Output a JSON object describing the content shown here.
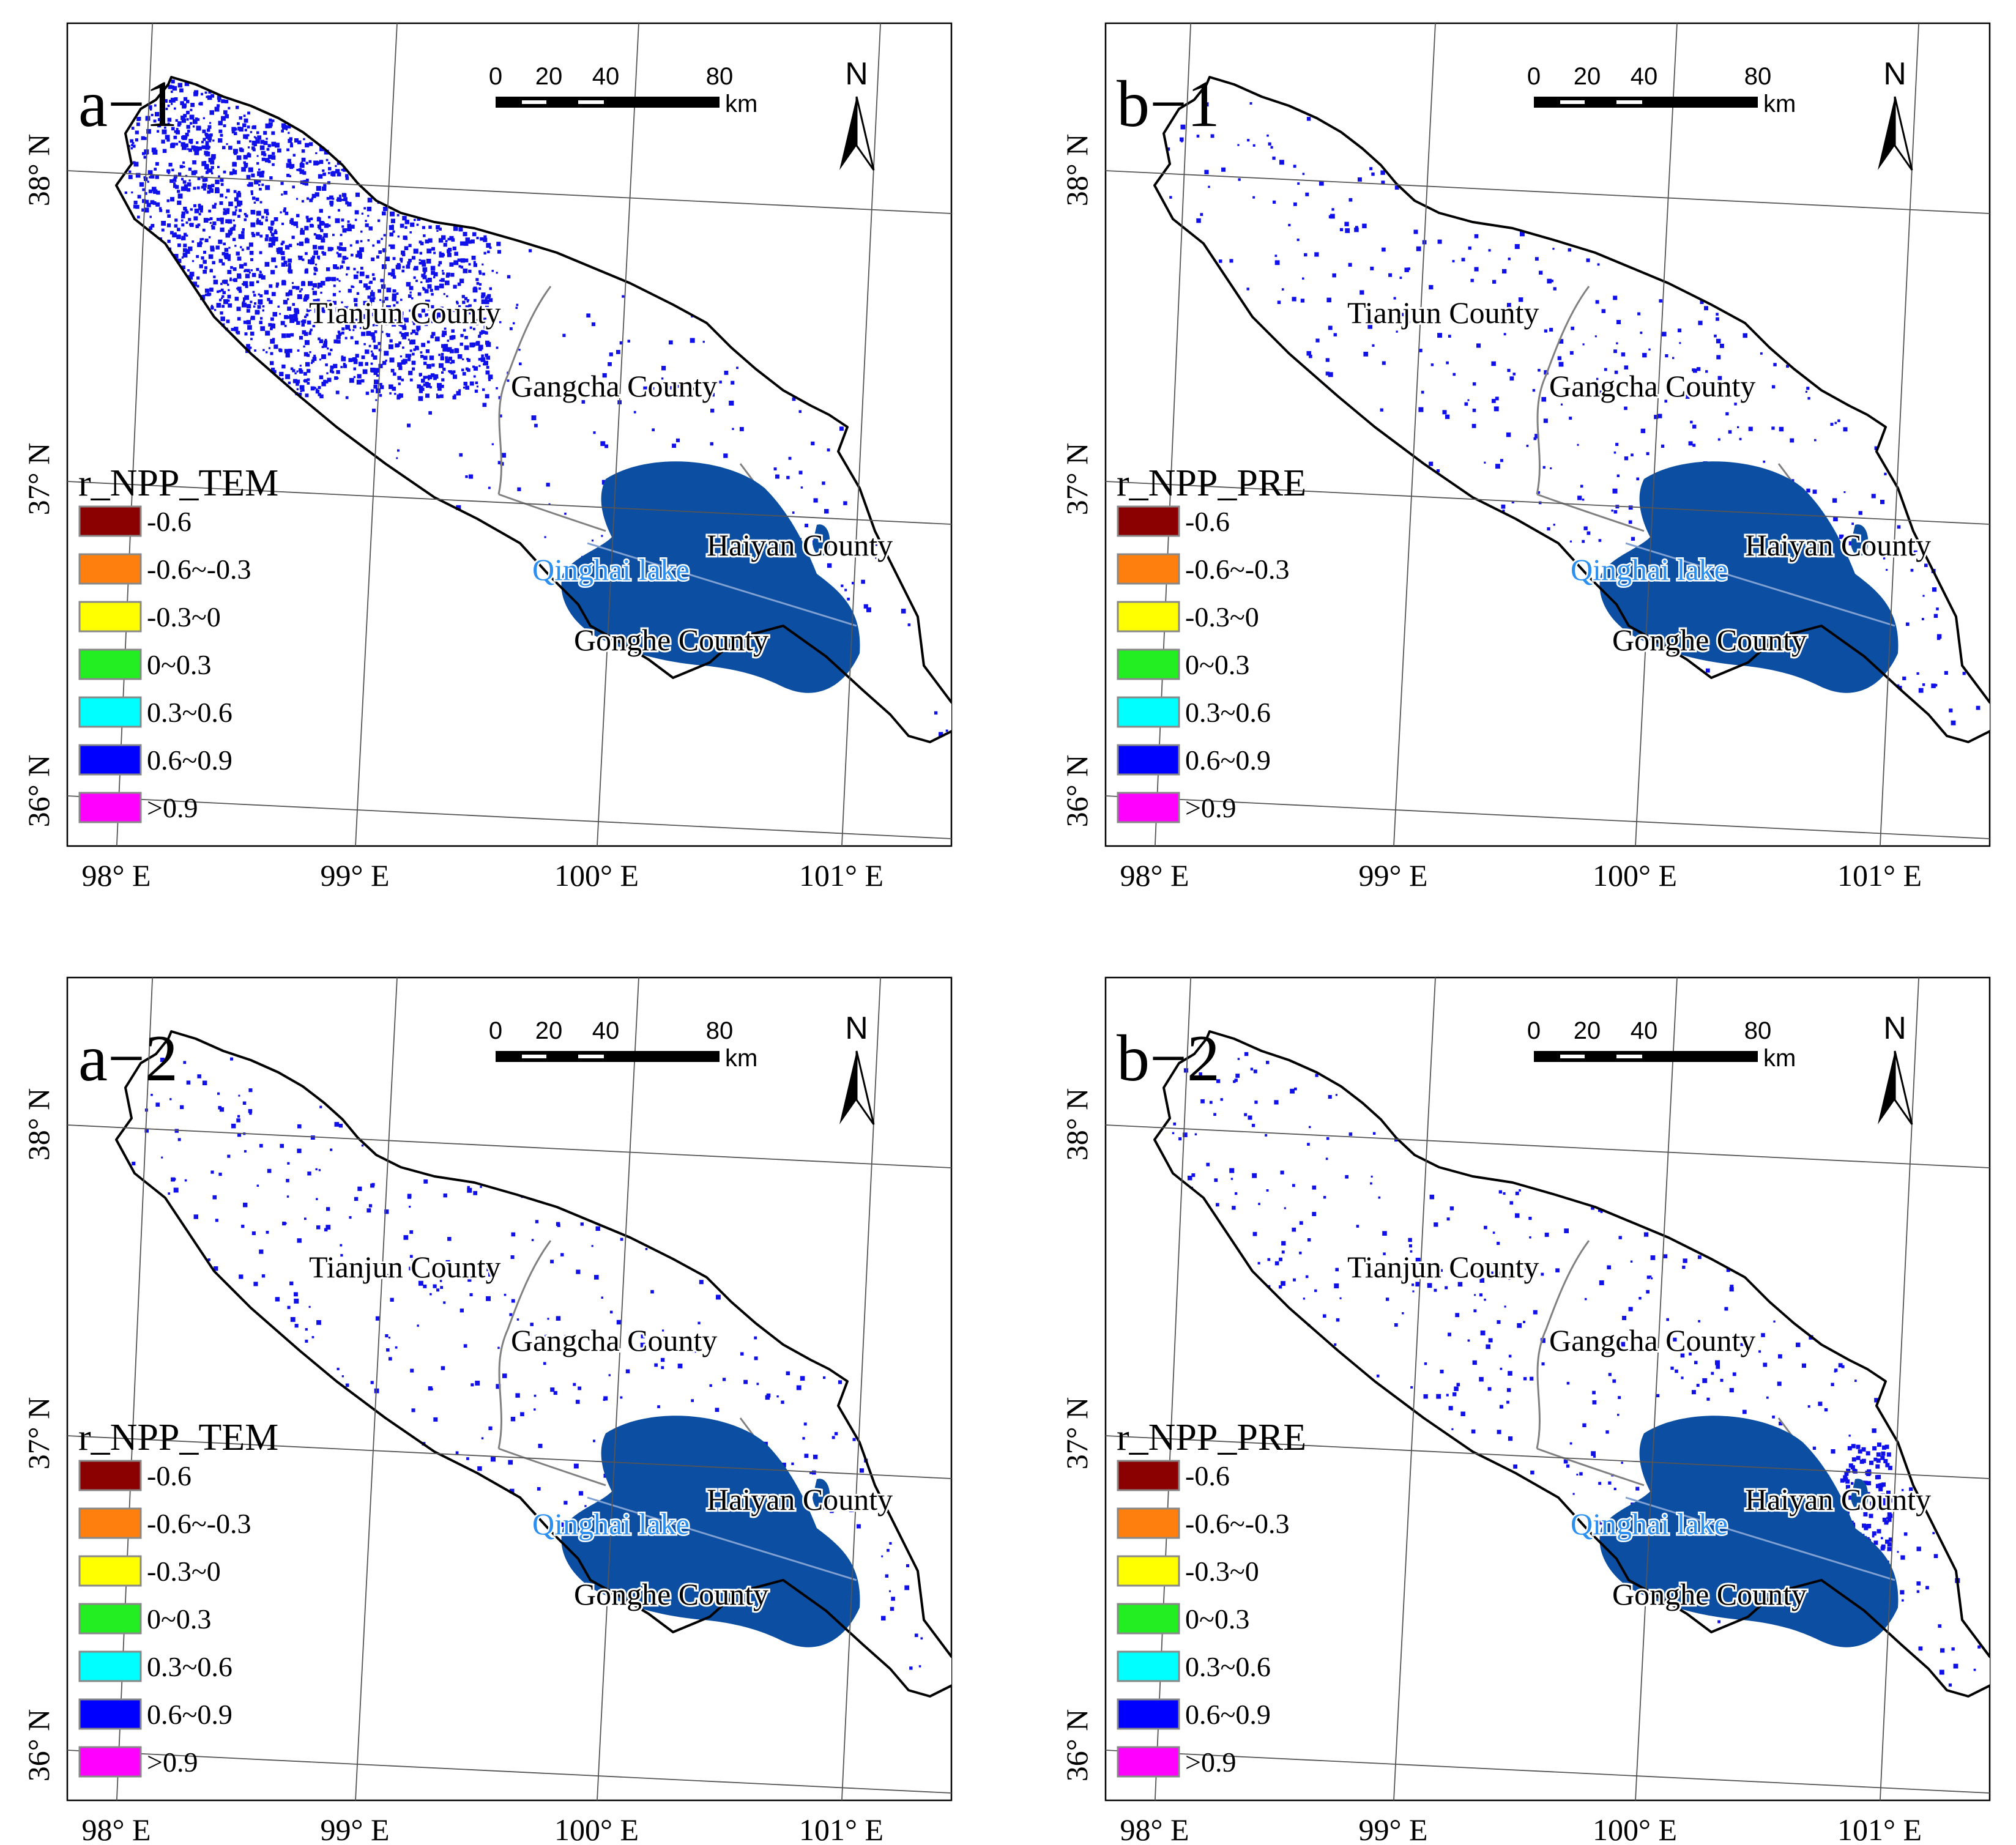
{
  "colors": {
    "boundary": "#000000",
    "lake": "#0b4ea2",
    "lake_label": "#2a8ff0",
    "pixel": "#1010e8",
    "divider": "#808080",
    "grid": "#555555"
  },
  "latitude_labels": [
    "38° N",
    "37° N",
    "36° N"
  ],
  "longitude_labels": [
    "98° E",
    "99° E",
    "100° E",
    "101° E"
  ],
  "scalebar": {
    "ticks": [
      "0",
      "20",
      "40",
      "80"
    ],
    "unit": "km"
  },
  "north_arrow": {
    "label": "N",
    "icon": "north-arrow-icon"
  },
  "places": {
    "tianjun": "Tianjun County",
    "gangcha": "Gangcha County",
    "haiyan": "Haiyan County",
    "gonghe": "Gonghe County",
    "lake": "Qinghai lake"
  },
  "legend_classes": [
    {
      "label": "-0.6",
      "color": "#8b0000"
    },
    {
      "label": "-0.6~-0.3",
      "color": "#ff7f0e"
    },
    {
      "label": "-0.3~0",
      "color": "#ffff00"
    },
    {
      "label": "0~0.3",
      "color": "#22ee22"
    },
    {
      "label": "0.3~0.6",
      "color": "#00ffff"
    },
    {
      "label": "0.6~0.9",
      "color": "#0000ff"
    },
    {
      "label": ">0.9",
      "color": "#ff00ff"
    }
  ],
  "panels": [
    {
      "id": "a-1",
      "label": "a−1",
      "legend_title": "r_NPP_TEM",
      "density": "high",
      "legend_labels": [
        "-0.6",
        "-0.6~-0.3",
        "-0.3~0",
        "0~0.3",
        "0.3~0.6",
        "0.6~0.9",
        ">0.9"
      ]
    },
    {
      "id": "b-1",
      "label": "b−1",
      "legend_title": "r_NPP_PRE",
      "density": "low",
      "legend_labels": [
        "-0.6",
        "-0.6~-0.3",
        "-0.3~0",
        "0~0.3",
        "0.3~0.6",
        "0.6~0.9",
        ">0.9"
      ]
    },
    {
      "id": "a-2",
      "label": "a−2",
      "legend_title": "r_NPP_TEM",
      "density": "low",
      "legend_labels": [
        "-0.6",
        "-0.6~-0.3",
        "-0.3~0",
        "0~0.3",
        "0.3~0.6",
        "0.6~0.9",
        ">0.9"
      ]
    },
    {
      "id": "b-2",
      "label": "b−2",
      "legend_title": "r_NPP_PRE",
      "density": "low",
      "legend_labels": [
        "-0.6",
        "-0.6~-0.3",
        "-0.3~0",
        "0~0.3",
        "0.3~0.6",
        "0.6~0.9",
        ">0.9"
      ]
    }
  ]
}
